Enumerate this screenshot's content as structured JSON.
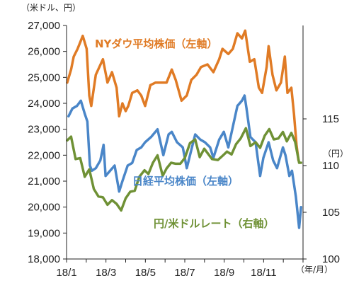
{
  "chart_data": {
    "type": "line",
    "left_axis_unit": "（米ドル、円）",
    "right_axis_unit": "（円）",
    "x_axis_unit": "（年/月）",
    "x_tick_labels": [
      "18/1",
      "18/3",
      "18/5",
      "18/7",
      "18/9",
      "18/11"
    ],
    "y_left": {
      "min": 18000,
      "max": 27000,
      "ticks": [
        18000,
        19000,
        20000,
        21000,
        22000,
        23000,
        24000,
        25000,
        26000,
        27000
      ],
      "tick_labels": [
        "18,000",
        "19,000",
        "20,000",
        "21,000",
        "22,000",
        "23,000",
        "24,000",
        "25,000",
        "26,000",
        "27,000"
      ]
    },
    "y_right": {
      "min": 100,
      "max": 125,
      "ticks": [
        100,
        105,
        110,
        115
      ],
      "tick_labels": [
        "100",
        "105",
        "110",
        "115"
      ]
    },
    "grid": false,
    "series": [
      {
        "name": "NYダウ平均株価（左軸）",
        "axis": "left",
        "color": "#e07b25",
        "points": [
          [
            "2018-01-02",
            24800
          ],
          [
            "2018-01-08",
            25300
          ],
          [
            "2018-01-12",
            25800
          ],
          [
            "2018-01-18",
            26100
          ],
          [
            "2018-01-26",
            26600
          ],
          [
            "2018-02-01",
            26100
          ],
          [
            "2018-02-05",
            24300
          ],
          [
            "2018-02-08",
            23900
          ],
          [
            "2018-02-15",
            25100
          ],
          [
            "2018-02-26",
            25700
          ],
          [
            "2018-03-05",
            24800
          ],
          [
            "2018-03-12",
            25200
          ],
          [
            "2018-03-19",
            24600
          ],
          [
            "2018-03-23",
            23500
          ],
          [
            "2018-03-28",
            24000
          ],
          [
            "2018-04-02",
            23700
          ],
          [
            "2018-04-06",
            23900
          ],
          [
            "2018-04-12",
            24400
          ],
          [
            "2018-04-20",
            24500
          ],
          [
            "2018-04-26",
            24300
          ],
          [
            "2018-05-02",
            23900
          ],
          [
            "2018-05-10",
            24700
          ],
          [
            "2018-05-18",
            24800
          ],
          [
            "2018-05-25",
            24800
          ],
          [
            "2018-06-04",
            24800
          ],
          [
            "2018-06-12",
            25300
          ],
          [
            "2018-06-18",
            24900
          ],
          [
            "2018-06-27",
            24100
          ],
          [
            "2018-07-05",
            24300
          ],
          [
            "2018-07-12",
            24900
          ],
          [
            "2018-07-20",
            25100
          ],
          [
            "2018-07-27",
            25400
          ],
          [
            "2018-08-06",
            25500
          ],
          [
            "2018-08-15",
            25200
          ],
          [
            "2018-08-24",
            25700
          ],
          [
            "2018-08-29",
            26100
          ],
          [
            "2018-09-07",
            25900
          ],
          [
            "2018-09-14",
            26100
          ],
          [
            "2018-09-21",
            26700
          ],
          [
            "2018-09-28",
            26500
          ],
          [
            "2018-10-03",
            26800
          ],
          [
            "2018-10-10",
            25600
          ],
          [
            "2018-10-17",
            25700
          ],
          [
            "2018-10-24",
            24600
          ],
          [
            "2018-10-29",
            24400
          ],
          [
            "2018-11-05",
            25400
          ],
          [
            "2018-11-08",
            26200
          ],
          [
            "2018-11-14",
            25100
          ],
          [
            "2018-11-20",
            24500
          ],
          [
            "2018-11-27",
            24800
          ],
          [
            "2018-12-03",
            25800
          ],
          [
            "2018-12-07",
            24400
          ],
          [
            "2018-12-13",
            24600
          ],
          [
            "2018-12-17",
            23600
          ],
          [
            "2018-12-21",
            22400
          ],
          [
            "2018-12-24",
            21800
          ]
        ]
      },
      {
        "name": "日経平均株価（左軸）",
        "axis": "left",
        "color": "#4a86c8",
        "points": [
          [
            "2018-01-04",
            23500
          ],
          [
            "2018-01-10",
            23800
          ],
          [
            "2018-01-17",
            23900
          ],
          [
            "2018-01-23",
            24100
          ],
          [
            "2018-01-29",
            23600
          ],
          [
            "2018-02-02",
            23300
          ],
          [
            "2018-02-06",
            21600
          ],
          [
            "2018-02-09",
            21400
          ],
          [
            "2018-02-15",
            21500
          ],
          [
            "2018-02-22",
            21800
          ],
          [
            "2018-02-27",
            22400
          ],
          [
            "2018-03-02",
            21200
          ],
          [
            "2018-03-09",
            21400
          ],
          [
            "2018-03-16",
            21600
          ],
          [
            "2018-03-23",
            20600
          ],
          [
            "2018-03-28",
            21000
          ],
          [
            "2018-04-05",
            21600
          ],
          [
            "2018-04-12",
            21700
          ],
          [
            "2018-04-19",
            22200
          ],
          [
            "2018-04-26",
            22300
          ],
          [
            "2018-05-02",
            22500
          ],
          [
            "2018-05-11",
            22700
          ],
          [
            "2018-05-21",
            23000
          ],
          [
            "2018-05-30",
            22000
          ],
          [
            "2018-06-07",
            22800
          ],
          [
            "2018-06-12",
            22900
          ],
          [
            "2018-06-20",
            22500
          ],
          [
            "2018-06-29",
            22300
          ],
          [
            "2018-07-05",
            21500
          ],
          [
            "2018-07-12",
            22200
          ],
          [
            "2018-07-18",
            22800
          ],
          [
            "2018-07-26",
            22600
          ],
          [
            "2018-08-02",
            22500
          ],
          [
            "2018-08-10",
            22300
          ],
          [
            "2018-08-15",
            21900
          ],
          [
            "2018-08-24",
            22600
          ],
          [
            "2018-08-31",
            22900
          ],
          [
            "2018-09-07",
            22300
          ],
          [
            "2018-09-14",
            23100
          ],
          [
            "2018-09-21",
            23900
          ],
          [
            "2018-09-28",
            24100
          ],
          [
            "2018-10-02",
            24300
          ],
          [
            "2018-10-05",
            23800
          ],
          [
            "2018-10-11",
            22700
          ],
          [
            "2018-10-19",
            22500
          ],
          [
            "2018-10-26",
            21200
          ],
          [
            "2018-10-31",
            21900
          ],
          [
            "2018-11-08",
            22500
          ],
          [
            "2018-11-15",
            21800
          ],
          [
            "2018-11-21",
            21500
          ],
          [
            "2018-11-30",
            22300
          ],
          [
            "2018-12-04",
            22000
          ],
          [
            "2018-12-10",
            21200
          ],
          [
            "2018-12-14",
            21400
          ],
          [
            "2018-12-20",
            20400
          ],
          [
            "2018-12-25",
            19200
          ],
          [
            "2018-12-28",
            20000
          ]
        ]
      },
      {
        "name": "円/米ドルレート（右軸）",
        "axis": "right",
        "color": "#6f9135",
        "points": [
          [
            "2018-01-02",
            112.7
          ],
          [
            "2018-01-08",
            113.1
          ],
          [
            "2018-01-15",
            110.7
          ],
          [
            "2018-01-22",
            110.8
          ],
          [
            "2018-01-29",
            108.8
          ],
          [
            "2018-02-05",
            109.6
          ],
          [
            "2018-02-12",
            107.5
          ],
          [
            "2018-02-19",
            106.7
          ],
          [
            "2018-02-26",
            106.6
          ],
          [
            "2018-03-05",
            105.8
          ],
          [
            "2018-03-12",
            106.3
          ],
          [
            "2018-03-19",
            105.9
          ],
          [
            "2018-03-26",
            105.2
          ],
          [
            "2018-04-02",
            106.5
          ],
          [
            "2018-04-09",
            107.2
          ],
          [
            "2018-04-16",
            107.3
          ],
          [
            "2018-04-23",
            108.8
          ],
          [
            "2018-05-01",
            109.5
          ],
          [
            "2018-05-07",
            109.1
          ],
          [
            "2018-05-14",
            110.3
          ],
          [
            "2018-05-21",
            111.1
          ],
          [
            "2018-05-29",
            108.9
          ],
          [
            "2018-06-04",
            109.7
          ],
          [
            "2018-06-11",
            110.3
          ],
          [
            "2018-06-18",
            110.2
          ],
          [
            "2018-06-25",
            110.2
          ],
          [
            "2018-07-02",
            110.8
          ],
          [
            "2018-07-10",
            112.4
          ],
          [
            "2018-07-18",
            112.8
          ],
          [
            "2018-07-25",
            110.9
          ],
          [
            "2018-08-01",
            111.8
          ],
          [
            "2018-08-13",
            110.7
          ],
          [
            "2018-08-22",
            110.6
          ],
          [
            "2018-08-30",
            111.1
          ],
          [
            "2018-09-05",
            111.5
          ],
          [
            "2018-09-12",
            111.2
          ],
          [
            "2018-09-19",
            112.3
          ],
          [
            "2018-09-26",
            112.9
          ],
          [
            "2018-10-04",
            114.0
          ],
          [
            "2018-10-11",
            112.1
          ],
          [
            "2018-10-19",
            112.5
          ],
          [
            "2018-10-26",
            111.9
          ],
          [
            "2018-11-02",
            113.2
          ],
          [
            "2018-11-09",
            113.9
          ],
          [
            "2018-11-16",
            112.8
          ],
          [
            "2018-11-23",
            112.9
          ],
          [
            "2018-11-30",
            113.6
          ],
          [
            "2018-12-06",
            112.6
          ],
          [
            "2018-12-13",
            113.5
          ],
          [
            "2018-12-19",
            112.5
          ],
          [
            "2018-12-25",
            110.3
          ],
          [
            "2018-12-28",
            110.3
          ]
        ]
      }
    ]
  }
}
